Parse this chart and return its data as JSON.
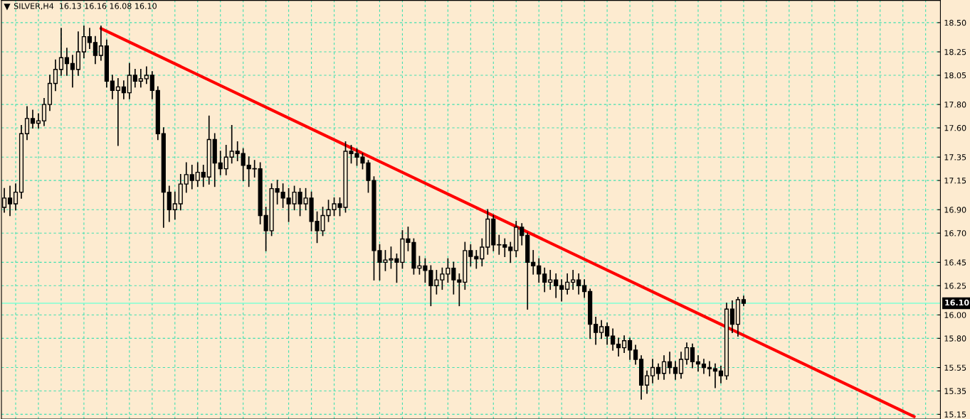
{
  "chart_data": {
    "type": "candlestick",
    "title": "SILVER,H4  16.13 16.16 16.08 16.10",
    "categories": [
      null,
      null,
      null,
      null,
      null,
      null,
      null,
      null,
      null,
      null,
      null,
      null,
      null,
      null,
      null,
      null,
      null,
      null,
      null,
      null,
      null,
      null,
      null,
      null,
      null,
      null,
      null,
      null,
      null,
      null,
      null,
      null,
      null,
      null,
      null,
      null,
      null,
      null,
      null,
      null,
      null,
      null,
      null,
      null,
      null,
      null,
      null,
      null,
      null,
      null,
      null,
      null,
      null,
      null,
      null,
      null,
      null,
      null,
      null,
      null,
      null,
      null,
      null,
      null,
      null,
      null,
      null,
      null,
      null,
      null,
      null,
      null,
      null,
      null,
      null,
      null,
      null,
      null,
      null,
      null,
      null,
      null,
      null,
      null,
      null,
      null,
      null,
      null,
      null,
      null,
      null,
      null,
      null,
      null,
      null,
      null,
      null,
      null,
      null,
      null,
      null,
      null,
      null,
      null,
      null,
      null,
      null,
      null,
      null,
      null,
      null,
      null,
      null,
      null,
      null,
      null,
      null,
      null,
      null,
      null,
      null,
      null,
      null,
      null,
      null,
      null,
      null,
      null,
      null,
      null,
      null,
      null,
      null,
      null,
      null,
      null,
      null,
      null,
      null,
      null,
      null,
      null,
      null,
      null,
      null,
      null,
      null,
      null,
      null,
      null,
      null,
      null,
      null,
      null,
      null,
      null,
      null,
      null,
      null,
      null,
      null,
      null,
      null,
      null,
      null
    ],
    "series": [
      {
        "color": "#000000",
        "ohlc": [
          [
            16.92,
            17.08,
            16.88,
            17.0
          ],
          [
            17.0,
            17.1,
            16.85,
            16.95
          ],
          [
            16.95,
            17.12,
            16.9,
            17.05
          ],
          [
            17.05,
            17.62,
            17.0,
            17.55
          ],
          [
            17.55,
            17.78,
            17.5,
            17.68
          ],
          [
            17.68,
            17.75,
            17.6,
            17.64
          ],
          [
            17.64,
            17.72,
            17.6,
            17.66
          ],
          [
            17.66,
            17.85,
            17.62,
            17.8
          ],
          [
            17.8,
            18.05,
            17.75,
            17.98
          ],
          [
            17.98,
            18.18,
            17.92,
            18.1
          ],
          [
            18.1,
            18.45,
            18.05,
            18.2
          ],
          [
            18.2,
            18.28,
            18.05,
            18.15
          ],
          [
            18.15,
            18.22,
            17.95,
            18.1
          ],
          [
            18.1,
            18.42,
            18.05,
            18.25
          ],
          [
            18.25,
            18.47,
            18.2,
            18.38
          ],
          [
            18.38,
            18.45,
            18.28,
            18.33
          ],
          [
            18.33,
            18.38,
            18.15,
            18.22
          ],
          [
            18.22,
            18.47,
            18.18,
            18.3
          ],
          [
            18.3,
            18.35,
            17.95,
            18.0
          ],
          [
            18.0,
            18.05,
            17.85,
            17.92
          ],
          [
            17.92,
            18.02,
            17.45,
            17.95
          ],
          [
            17.95,
            18.0,
            17.85,
            17.9
          ],
          [
            17.9,
            18.15,
            17.85,
            18.05
          ],
          [
            18.05,
            18.1,
            17.95,
            18.0
          ],
          [
            18.0,
            18.1,
            17.95,
            18.02
          ],
          [
            18.02,
            18.12,
            17.98,
            18.05
          ],
          [
            18.05,
            18.08,
            17.85,
            17.92
          ],
          [
            17.92,
            17.95,
            17.5,
            17.55
          ],
          [
            17.55,
            17.6,
            16.75,
            17.05
          ],
          [
            17.05,
            17.1,
            16.8,
            16.9
          ],
          [
            16.9,
            17.05,
            16.82,
            16.95
          ],
          [
            16.95,
            17.2,
            16.9,
            17.12
          ],
          [
            17.12,
            17.3,
            17.05,
            17.2
          ],
          [
            17.2,
            17.28,
            17.08,
            17.15
          ],
          [
            17.15,
            17.3,
            17.1,
            17.22
          ],
          [
            17.22,
            17.28,
            17.1,
            17.18
          ],
          [
            17.18,
            17.7,
            17.12,
            17.5
          ],
          [
            17.5,
            17.55,
            17.1,
            17.3
          ],
          [
            17.3,
            17.4,
            17.2,
            17.25
          ],
          [
            17.25,
            17.45,
            17.2,
            17.35
          ],
          [
            17.35,
            17.62,
            17.3,
            17.4
          ],
          [
            17.4,
            17.48,
            17.32,
            17.38
          ],
          [
            17.38,
            17.42,
            17.15,
            17.28
          ],
          [
            17.28,
            17.35,
            17.1,
            17.25
          ],
          [
            17.25,
            17.32,
            17.18,
            17.25
          ],
          [
            17.25,
            17.3,
            16.78,
            16.85
          ],
          [
            16.85,
            16.92,
            16.55,
            16.72
          ],
          [
            16.72,
            17.12,
            16.68,
            17.08
          ],
          [
            17.08,
            17.15,
            16.95,
            17.05
          ],
          [
            17.05,
            17.12,
            16.92,
            17.0
          ],
          [
            17.0,
            17.08,
            16.8,
            16.95
          ],
          [
            16.95,
            17.1,
            16.9,
            17.05
          ],
          [
            17.05,
            17.08,
            16.85,
            16.95
          ],
          [
            16.95,
            17.08,
            16.9,
            17.0
          ],
          [
            17.0,
            17.05,
            16.72,
            16.8
          ],
          [
            16.8,
            16.88,
            16.62,
            16.72
          ],
          [
            16.72,
            16.92,
            16.68,
            16.85
          ],
          [
            16.85,
            16.98,
            16.8,
            16.9
          ],
          [
            16.9,
            17.0,
            16.85,
            16.95
          ],
          [
            16.95,
            17.0,
            16.85,
            16.92
          ],
          [
            16.92,
            17.48,
            16.88,
            17.4
          ],
          [
            17.4,
            17.45,
            17.3,
            17.38
          ],
          [
            17.38,
            17.42,
            17.28,
            17.35
          ],
          [
            17.35,
            17.38,
            17.25,
            17.3
          ],
          [
            17.3,
            17.32,
            17.05,
            17.15
          ],
          [
            17.15,
            17.18,
            16.3,
            16.55
          ],
          [
            16.55,
            16.6,
            16.3,
            16.45
          ],
          [
            16.45,
            16.55,
            16.38,
            16.47
          ],
          [
            16.47,
            16.58,
            16.4,
            16.48
          ],
          [
            16.48,
            16.52,
            16.28,
            16.45
          ],
          [
            16.45,
            16.72,
            16.4,
            16.65
          ],
          [
            16.65,
            16.75,
            16.55,
            16.62
          ],
          [
            16.62,
            16.65,
            16.35,
            16.4
          ],
          [
            16.4,
            16.5,
            16.35,
            16.42
          ],
          [
            16.42,
            16.48,
            16.28,
            16.38
          ],
          [
            16.38,
            16.42,
            16.08,
            16.25
          ],
          [
            16.25,
            16.38,
            16.18,
            16.3
          ],
          [
            16.3,
            16.4,
            16.22,
            16.35
          ],
          [
            16.35,
            16.48,
            16.28,
            16.4
          ],
          [
            16.4,
            16.45,
            16.18,
            16.3
          ],
          [
            16.3,
            16.35,
            16.08,
            16.28
          ],
          [
            16.28,
            16.62,
            16.22,
            16.55
          ],
          [
            16.55,
            16.6,
            16.42,
            16.5
          ],
          [
            16.5,
            16.55,
            16.4,
            16.48
          ],
          [
            16.48,
            16.65,
            16.42,
            16.58
          ],
          [
            16.58,
            16.9,
            16.52,
            16.82
          ],
          [
            16.82,
            16.85,
            16.55,
            16.6
          ],
          [
            16.6,
            16.68,
            16.52,
            16.6
          ],
          [
            16.6,
            16.65,
            16.5,
            16.58
          ],
          [
            16.58,
            16.62,
            16.45,
            16.55
          ],
          [
            16.55,
            16.8,
            16.5,
            16.75
          ],
          [
            16.75,
            16.78,
            16.6,
            16.68
          ],
          [
            16.68,
            16.7,
            16.05,
            16.45
          ],
          [
            16.45,
            16.55,
            16.35,
            16.42
          ],
          [
            16.42,
            16.48,
            16.28,
            16.35
          ],
          [
            16.35,
            16.4,
            16.2,
            16.28
          ],
          [
            16.28,
            16.38,
            16.22,
            16.3
          ],
          [
            16.3,
            16.35,
            16.15,
            16.25
          ],
          [
            16.25,
            16.3,
            16.12,
            16.22
          ],
          [
            16.22,
            16.35,
            16.18,
            16.28
          ],
          [
            16.28,
            16.38,
            16.22,
            16.3
          ],
          [
            16.3,
            16.35,
            16.18,
            16.25
          ],
          [
            16.25,
            16.3,
            16.15,
            16.2
          ],
          [
            16.2,
            16.22,
            15.8,
            15.92
          ],
          [
            15.92,
            15.98,
            15.75,
            15.85
          ],
          [
            15.85,
            15.95,
            15.8,
            15.9
          ],
          [
            15.9,
            15.93,
            15.75,
            15.82
          ],
          [
            15.82,
            15.88,
            15.7,
            15.75
          ],
          [
            15.75,
            15.8,
            15.65,
            15.72
          ],
          [
            15.72,
            15.82,
            15.68,
            15.78
          ],
          [
            15.78,
            15.8,
            15.62,
            15.7
          ],
          [
            15.7,
            15.74,
            15.58,
            15.62
          ],
          [
            15.62,
            15.65,
            15.28,
            15.4
          ],
          [
            15.4,
            15.52,
            15.33,
            15.48
          ],
          [
            15.48,
            15.62,
            15.42,
            15.55
          ],
          [
            15.55,
            15.58,
            15.45,
            15.5
          ],
          [
            15.5,
            15.65,
            15.45,
            15.6
          ],
          [
            15.6,
            15.68,
            15.5,
            15.55
          ],
          [
            15.55,
            15.6,
            15.45,
            15.5
          ],
          [
            15.5,
            15.68,
            15.46,
            15.62
          ],
          [
            15.62,
            15.76,
            15.58,
            15.72
          ],
          [
            15.72,
            15.75,
            15.55,
            15.6
          ],
          [
            15.6,
            15.65,
            15.52,
            15.58
          ],
          [
            15.58,
            15.62,
            15.5,
            15.55
          ],
          [
            15.55,
            15.6,
            15.48,
            15.54
          ],
          [
            15.54,
            15.58,
            15.38,
            15.52
          ],
          [
            15.52,
            15.56,
            15.42,
            15.48
          ],
          [
            15.48,
            16.1,
            15.45,
            16.05
          ],
          [
            16.05,
            16.12,
            15.85,
            15.92
          ],
          [
            15.92,
            16.15,
            15.82,
            16.13
          ],
          [
            16.13,
            16.16,
            16.08,
            16.1
          ],
          null,
          null,
          null,
          null,
          null,
          null,
          null,
          null,
          null,
          null,
          null,
          null,
          null,
          null,
          null,
          null,
          null,
          null,
          null,
          null,
          null,
          null,
          null,
          null,
          null,
          null,
          null,
          null,
          null,
          null,
          null,
          null,
          null,
          null
        ]
      },
      {
        "type": "line",
        "color": "#ff0000",
        "values": [
          null,
          null,
          null,
          null,
          null,
          null,
          null,
          null,
          null,
          null,
          null,
          null,
          null,
          null,
          null,
          null,
          null,
          18.45,
          null,
          null,
          null,
          null,
          null,
          null,
          null,
          null,
          null,
          null,
          null,
          null,
          null,
          null,
          null,
          null,
          null,
          null,
          null,
          null,
          null,
          null,
          null,
          null,
          null,
          null,
          null,
          null,
          null,
          null,
          null,
          null,
          null,
          null,
          null,
          null,
          null,
          null,
          null,
          null,
          null,
          null,
          null,
          null,
          null,
          null,
          null,
          null,
          null,
          null,
          null,
          null,
          null,
          null,
          null,
          null,
          null,
          null,
          null,
          null,
          null,
          null,
          null,
          null,
          null,
          null,
          null,
          null,
          null,
          null,
          null,
          null,
          null,
          null,
          null,
          null,
          null,
          null,
          null,
          null,
          null,
          null,
          null,
          null,
          null,
          null,
          null,
          null,
          null,
          null,
          null,
          null,
          null,
          null,
          null,
          null,
          null,
          null,
          null,
          null,
          null,
          null,
          null,
          null,
          null,
          null,
          null,
          null,
          null,
          null,
          null,
          null,
          null,
          null,
          null,
          null,
          null,
          null,
          null,
          null,
          null,
          null,
          null,
          null,
          null,
          null,
          null,
          null,
          null,
          null,
          null,
          null,
          null,
          null,
          null,
          null,
          null,
          null,
          null,
          null,
          null,
          null,
          15.13,
          null,
          null,
          null,
          null
        ]
      }
    ],
    "ylim": [
      15.11,
      18.69
    ],
    "yticks": [
      15.15,
      15.35,
      15.55,
      {
        "value": 15.8,
        "label": "15.80"
      },
      {
        "value": 16.0,
        "label": "16.00"
      },
      16.25,
      16.45,
      {
        "value": 16.7,
        "label": "16.70"
      },
      {
        "value": 16.9,
        "label": "16.90"
      },
      17.15,
      17.35,
      {
        "value": 17.6,
        "label": "17.60"
      },
      {
        "value": 17.8,
        "label": "17.80"
      },
      18.05,
      18.25,
      {
        "value": 18.5,
        "label": "18.50"
      }
    ],
    "ref_lines": [
      {
        "axis": "y",
        "value": 16.1,
        "label": "16.10",
        "color": "#7fffd4"
      }
    ],
    "grid": true,
    "tick_labels": "y"
  }
}
